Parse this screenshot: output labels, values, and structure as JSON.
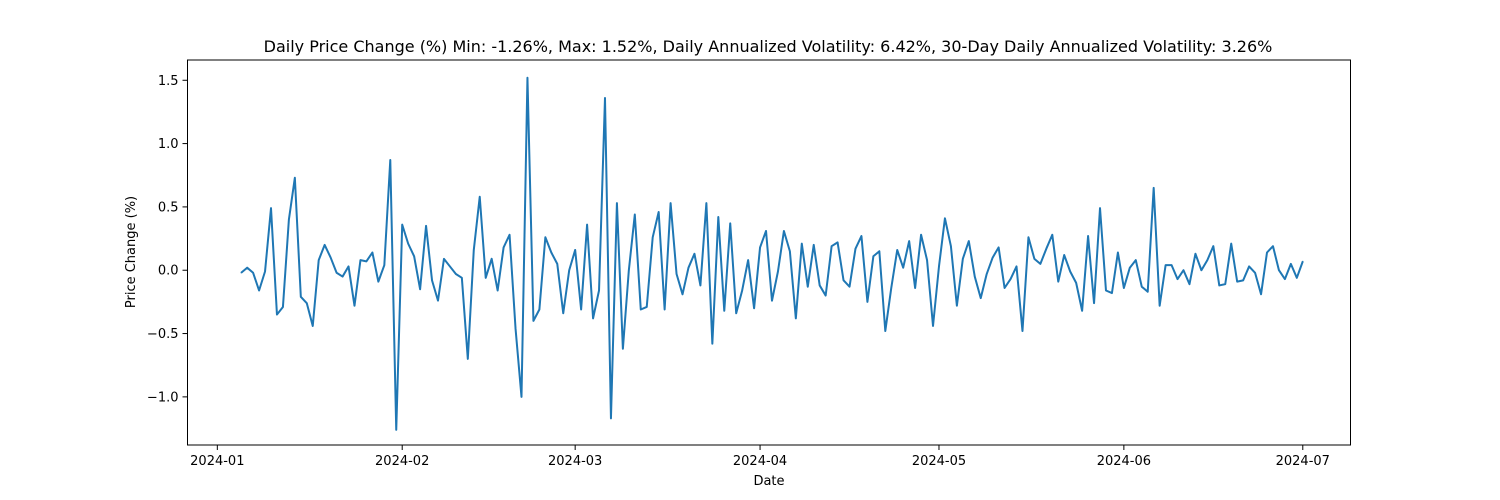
{
  "chart_data": {
    "type": "line",
    "title": "Daily Price Change (%) Min: -1.26%, Max: 1.52%, Daily Annualized Volatility: 6.42%, 30-Day Daily Annualized Volatility: 3.26%",
    "xlabel": "Date",
    "ylabel": "Price Change (%)",
    "x_range": [
      "2023-12-27",
      "2024-07-09"
    ],
    "ylim": [
      -1.38,
      1.66
    ],
    "x_ticks": [
      {
        "date": "2024-01-01",
        "label": "2024-01"
      },
      {
        "date": "2024-02-01",
        "label": "2024-02"
      },
      {
        "date": "2024-03-01",
        "label": "2024-03"
      },
      {
        "date": "2024-04-01",
        "label": "2024-04"
      },
      {
        "date": "2024-05-01",
        "label": "2024-05"
      },
      {
        "date": "2024-06-01",
        "label": "2024-06"
      },
      {
        "date": "2024-07-01",
        "label": "2024-07"
      }
    ],
    "y_ticks": [
      {
        "value": 1.5,
        "label": "1.5"
      },
      {
        "value": 1.0,
        "label": "1.0"
      },
      {
        "value": 0.5,
        "label": "0.5"
      },
      {
        "value": 0.0,
        "label": "0.0"
      },
      {
        "value": -0.5,
        "label": "−0.5"
      },
      {
        "value": -1.0,
        "label": "−1.0"
      }
    ],
    "grid": false,
    "series": [
      {
        "color": "#1f77b4",
        "points": [
          [
            "2024-01-05",
            -0.02
          ],
          [
            "2024-01-06",
            0.02
          ],
          [
            "2024-01-07",
            -0.02
          ],
          [
            "2024-01-08",
            -0.16
          ],
          [
            "2024-01-09",
            -0.01
          ],
          [
            "2024-01-10",
            0.49
          ],
          [
            "2024-01-11",
            -0.35
          ],
          [
            "2024-01-12",
            -0.29
          ],
          [
            "2024-01-13",
            0.4
          ],
          [
            "2024-01-14",
            0.73
          ],
          [
            "2024-01-15",
            -0.21
          ],
          [
            "2024-01-16",
            -0.26
          ],
          [
            "2024-01-17",
            -0.44
          ],
          [
            "2024-01-18",
            0.08
          ],
          [
            "2024-01-19",
            0.2
          ],
          [
            "2024-01-20",
            0.1
          ],
          [
            "2024-01-21",
            -0.02
          ],
          [
            "2024-01-22",
            -0.05
          ],
          [
            "2024-01-23",
            0.03
          ],
          [
            "2024-01-24",
            -0.28
          ],
          [
            "2024-01-25",
            0.08
          ],
          [
            "2024-01-26",
            0.07
          ],
          [
            "2024-01-27",
            0.14
          ],
          [
            "2024-01-28",
            -0.09
          ],
          [
            "2024-01-29",
            0.04
          ],
          [
            "2024-01-30",
            0.87
          ],
          [
            "2024-01-31",
            -1.26
          ],
          [
            "2024-02-01",
            0.36
          ],
          [
            "2024-02-02",
            0.21
          ],
          [
            "2024-02-03",
            0.11
          ],
          [
            "2024-02-04",
            -0.15
          ],
          [
            "2024-02-05",
            0.35
          ],
          [
            "2024-02-06",
            -0.08
          ],
          [
            "2024-02-07",
            -0.24
          ],
          [
            "2024-02-08",
            0.09
          ],
          [
            "2024-02-09",
            0.03
          ],
          [
            "2024-02-10",
            -0.03
          ],
          [
            "2024-02-11",
            -0.06
          ],
          [
            "2024-02-12",
            -0.7
          ],
          [
            "2024-02-13",
            0.16
          ],
          [
            "2024-02-14",
            0.58
          ],
          [
            "2024-02-15",
            -0.06
          ],
          [
            "2024-02-16",
            0.09
          ],
          [
            "2024-02-17",
            -0.16
          ],
          [
            "2024-02-18",
            0.18
          ],
          [
            "2024-02-19",
            0.28
          ],
          [
            "2024-02-20",
            -0.46
          ],
          [
            "2024-02-21",
            -1.0
          ],
          [
            "2024-02-22",
            1.52
          ],
          [
            "2024-02-23",
            -0.4
          ],
          [
            "2024-02-24",
            -0.31
          ],
          [
            "2024-02-25",
            0.26
          ],
          [
            "2024-02-26",
            0.14
          ],
          [
            "2024-02-27",
            0.05
          ],
          [
            "2024-02-28",
            -0.34
          ],
          [
            "2024-02-29",
            0.0
          ],
          [
            "2024-03-01",
            0.16
          ],
          [
            "2024-03-02",
            -0.31
          ],
          [
            "2024-03-03",
            0.36
          ],
          [
            "2024-03-04",
            -0.38
          ],
          [
            "2024-03-05",
            -0.16
          ],
          [
            "2024-03-06",
            1.36
          ],
          [
            "2024-03-07",
            -1.17
          ],
          [
            "2024-03-08",
            0.53
          ],
          [
            "2024-03-09",
            -0.62
          ],
          [
            "2024-03-10",
            0.0
          ],
          [
            "2024-03-11",
            0.44
          ],
          [
            "2024-03-12",
            -0.31
          ],
          [
            "2024-03-13",
            -0.29
          ],
          [
            "2024-03-14",
            0.26
          ],
          [
            "2024-03-15",
            0.46
          ],
          [
            "2024-03-16",
            -0.31
          ],
          [
            "2024-03-17",
            0.53
          ],
          [
            "2024-03-18",
            -0.03
          ],
          [
            "2024-03-19",
            -0.19
          ],
          [
            "2024-03-20",
            0.02
          ],
          [
            "2024-03-21",
            0.13
          ],
          [
            "2024-03-22",
            -0.12
          ],
          [
            "2024-03-23",
            0.53
          ],
          [
            "2024-03-24",
            -0.58
          ],
          [
            "2024-03-25",
            0.42
          ],
          [
            "2024-03-26",
            -0.32
          ],
          [
            "2024-03-27",
            0.37
          ],
          [
            "2024-03-28",
            -0.34
          ],
          [
            "2024-03-29",
            -0.16
          ],
          [
            "2024-03-30",
            0.08
          ],
          [
            "2024-03-31",
            -0.3
          ],
          [
            "2024-04-01",
            0.18
          ],
          [
            "2024-04-02",
            0.31
          ],
          [
            "2024-04-03",
            -0.24
          ],
          [
            "2024-04-04",
            -0.01
          ],
          [
            "2024-04-05",
            0.31
          ],
          [
            "2024-04-06",
            0.15
          ],
          [
            "2024-04-07",
            -0.38
          ],
          [
            "2024-04-08",
            0.21
          ],
          [
            "2024-04-09",
            -0.13
          ],
          [
            "2024-04-10",
            0.2
          ],
          [
            "2024-04-11",
            -0.12
          ],
          [
            "2024-04-12",
            -0.2
          ],
          [
            "2024-04-13",
            0.19
          ],
          [
            "2024-04-14",
            0.22
          ],
          [
            "2024-04-15",
            -0.08
          ],
          [
            "2024-04-16",
            -0.13
          ],
          [
            "2024-04-17",
            0.17
          ],
          [
            "2024-04-18",
            0.27
          ],
          [
            "2024-04-19",
            -0.25
          ],
          [
            "2024-04-20",
            0.11
          ],
          [
            "2024-04-21",
            0.15
          ],
          [
            "2024-04-22",
            -0.48
          ],
          [
            "2024-04-23",
            -0.14
          ],
          [
            "2024-04-24",
            0.16
          ],
          [
            "2024-04-25",
            0.02
          ],
          [
            "2024-04-26",
            0.23
          ],
          [
            "2024-04-27",
            -0.14
          ],
          [
            "2024-04-28",
            0.28
          ],
          [
            "2024-04-29",
            0.08
          ],
          [
            "2024-04-30",
            -0.44
          ],
          [
            "2024-05-01",
            0.03
          ],
          [
            "2024-05-02",
            0.41
          ],
          [
            "2024-05-03",
            0.19
          ],
          [
            "2024-05-04",
            -0.28
          ],
          [
            "2024-05-05",
            0.09
          ],
          [
            "2024-05-06",
            0.23
          ],
          [
            "2024-05-07",
            -0.05
          ],
          [
            "2024-05-08",
            -0.22
          ],
          [
            "2024-05-09",
            -0.03
          ],
          [
            "2024-05-10",
            0.1
          ],
          [
            "2024-05-11",
            0.18
          ],
          [
            "2024-05-12",
            -0.14
          ],
          [
            "2024-05-13",
            -0.07
          ],
          [
            "2024-05-14",
            0.03
          ],
          [
            "2024-05-15",
            -0.48
          ],
          [
            "2024-05-16",
            0.26
          ],
          [
            "2024-05-17",
            0.09
          ],
          [
            "2024-05-18",
            0.05
          ],
          [
            "2024-05-19",
            0.17
          ],
          [
            "2024-05-20",
            0.28
          ],
          [
            "2024-05-21",
            -0.09
          ],
          [
            "2024-05-22",
            0.12
          ],
          [
            "2024-05-23",
            -0.01
          ],
          [
            "2024-05-24",
            -0.1
          ],
          [
            "2024-05-25",
            -0.32
          ],
          [
            "2024-05-26",
            0.27
          ],
          [
            "2024-05-27",
            -0.26
          ],
          [
            "2024-05-28",
            0.49
          ],
          [
            "2024-05-29",
            -0.16
          ],
          [
            "2024-05-30",
            -0.18
          ],
          [
            "2024-05-31",
            0.14
          ],
          [
            "2024-06-01",
            -0.14
          ],
          [
            "2024-06-02",
            0.02
          ],
          [
            "2024-06-03",
            0.08
          ],
          [
            "2024-06-04",
            -0.13
          ],
          [
            "2024-06-05",
            -0.17
          ],
          [
            "2024-06-06",
            0.65
          ],
          [
            "2024-06-07",
            -0.28
          ],
          [
            "2024-06-08",
            0.04
          ],
          [
            "2024-06-09",
            0.04
          ],
          [
            "2024-06-10",
            -0.07
          ],
          [
            "2024-06-11",
            0.0
          ],
          [
            "2024-06-12",
            -0.11
          ],
          [
            "2024-06-13",
            0.13
          ],
          [
            "2024-06-14",
            0.0
          ],
          [
            "2024-06-15",
            0.08
          ],
          [
            "2024-06-16",
            0.19
          ],
          [
            "2024-06-17",
            -0.12
          ],
          [
            "2024-06-18",
            -0.11
          ],
          [
            "2024-06-19",
            0.21
          ],
          [
            "2024-06-20",
            -0.09
          ],
          [
            "2024-06-21",
            -0.08
          ],
          [
            "2024-06-22",
            0.03
          ],
          [
            "2024-06-23",
            -0.02
          ],
          [
            "2024-06-24",
            -0.19
          ],
          [
            "2024-06-25",
            0.14
          ],
          [
            "2024-06-26",
            0.19
          ],
          [
            "2024-06-27",
            0.0
          ],
          [
            "2024-06-28",
            -0.07
          ],
          [
            "2024-06-29",
            0.05
          ],
          [
            "2024-06-30",
            -0.06
          ],
          [
            "2024-07-01",
            0.07
          ]
        ]
      }
    ]
  }
}
